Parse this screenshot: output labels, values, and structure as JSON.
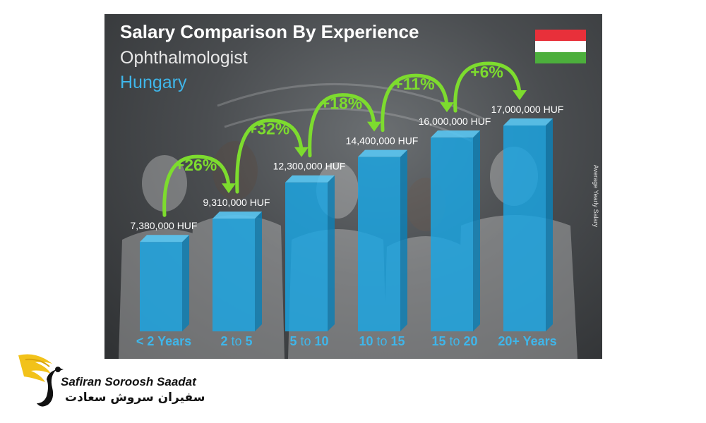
{
  "chart_data": {
    "type": "bar",
    "title": "Salary Comparison By Experience",
    "subtitle": "Ophthalmologist",
    "country": "Hungary",
    "ylabel": "Average Yearly Salary",
    "categories": [
      {
        "pre": "< 2",
        "mid": "",
        "post": "Years"
      },
      {
        "pre": "2",
        "mid": "to",
        "post": "5"
      },
      {
        "pre": "5",
        "mid": "to",
        "post": "10"
      },
      {
        "pre": "10",
        "mid": "to",
        "post": "15"
      },
      {
        "pre": "15",
        "mid": "to",
        "post": "20"
      },
      {
        "pre": "20+",
        "mid": "",
        "post": "Years"
      }
    ],
    "values": [
      7380000,
      9310000,
      12300000,
      14400000,
      16000000,
      17000000
    ],
    "value_labels": [
      "7,380,000 HUF",
      "9,310,000 HUF",
      "12,300,000 HUF",
      "14,400,000 HUF",
      "16,000,000 HUF",
      "17,000,000 HUF"
    ],
    "increases": [
      "+26%",
      "+32%",
      "+18%",
      "+11%",
      "+6%"
    ],
    "ylim": [
      0,
      17000000
    ],
    "colors": {
      "bar": "#1aa6e4",
      "bar_side": "#0e7fb4",
      "bar_top": "#59c7f3",
      "arrow": "#7ddc2e",
      "category_label": "#3fb6ea"
    }
  },
  "flag": {
    "colors": [
      "#e8303a",
      "#ffffff",
      "#4caf3c"
    ]
  },
  "brand": {
    "name": "Safiran Soroosh Saadat",
    "name_fa": "سفیران سروش سعادت"
  }
}
